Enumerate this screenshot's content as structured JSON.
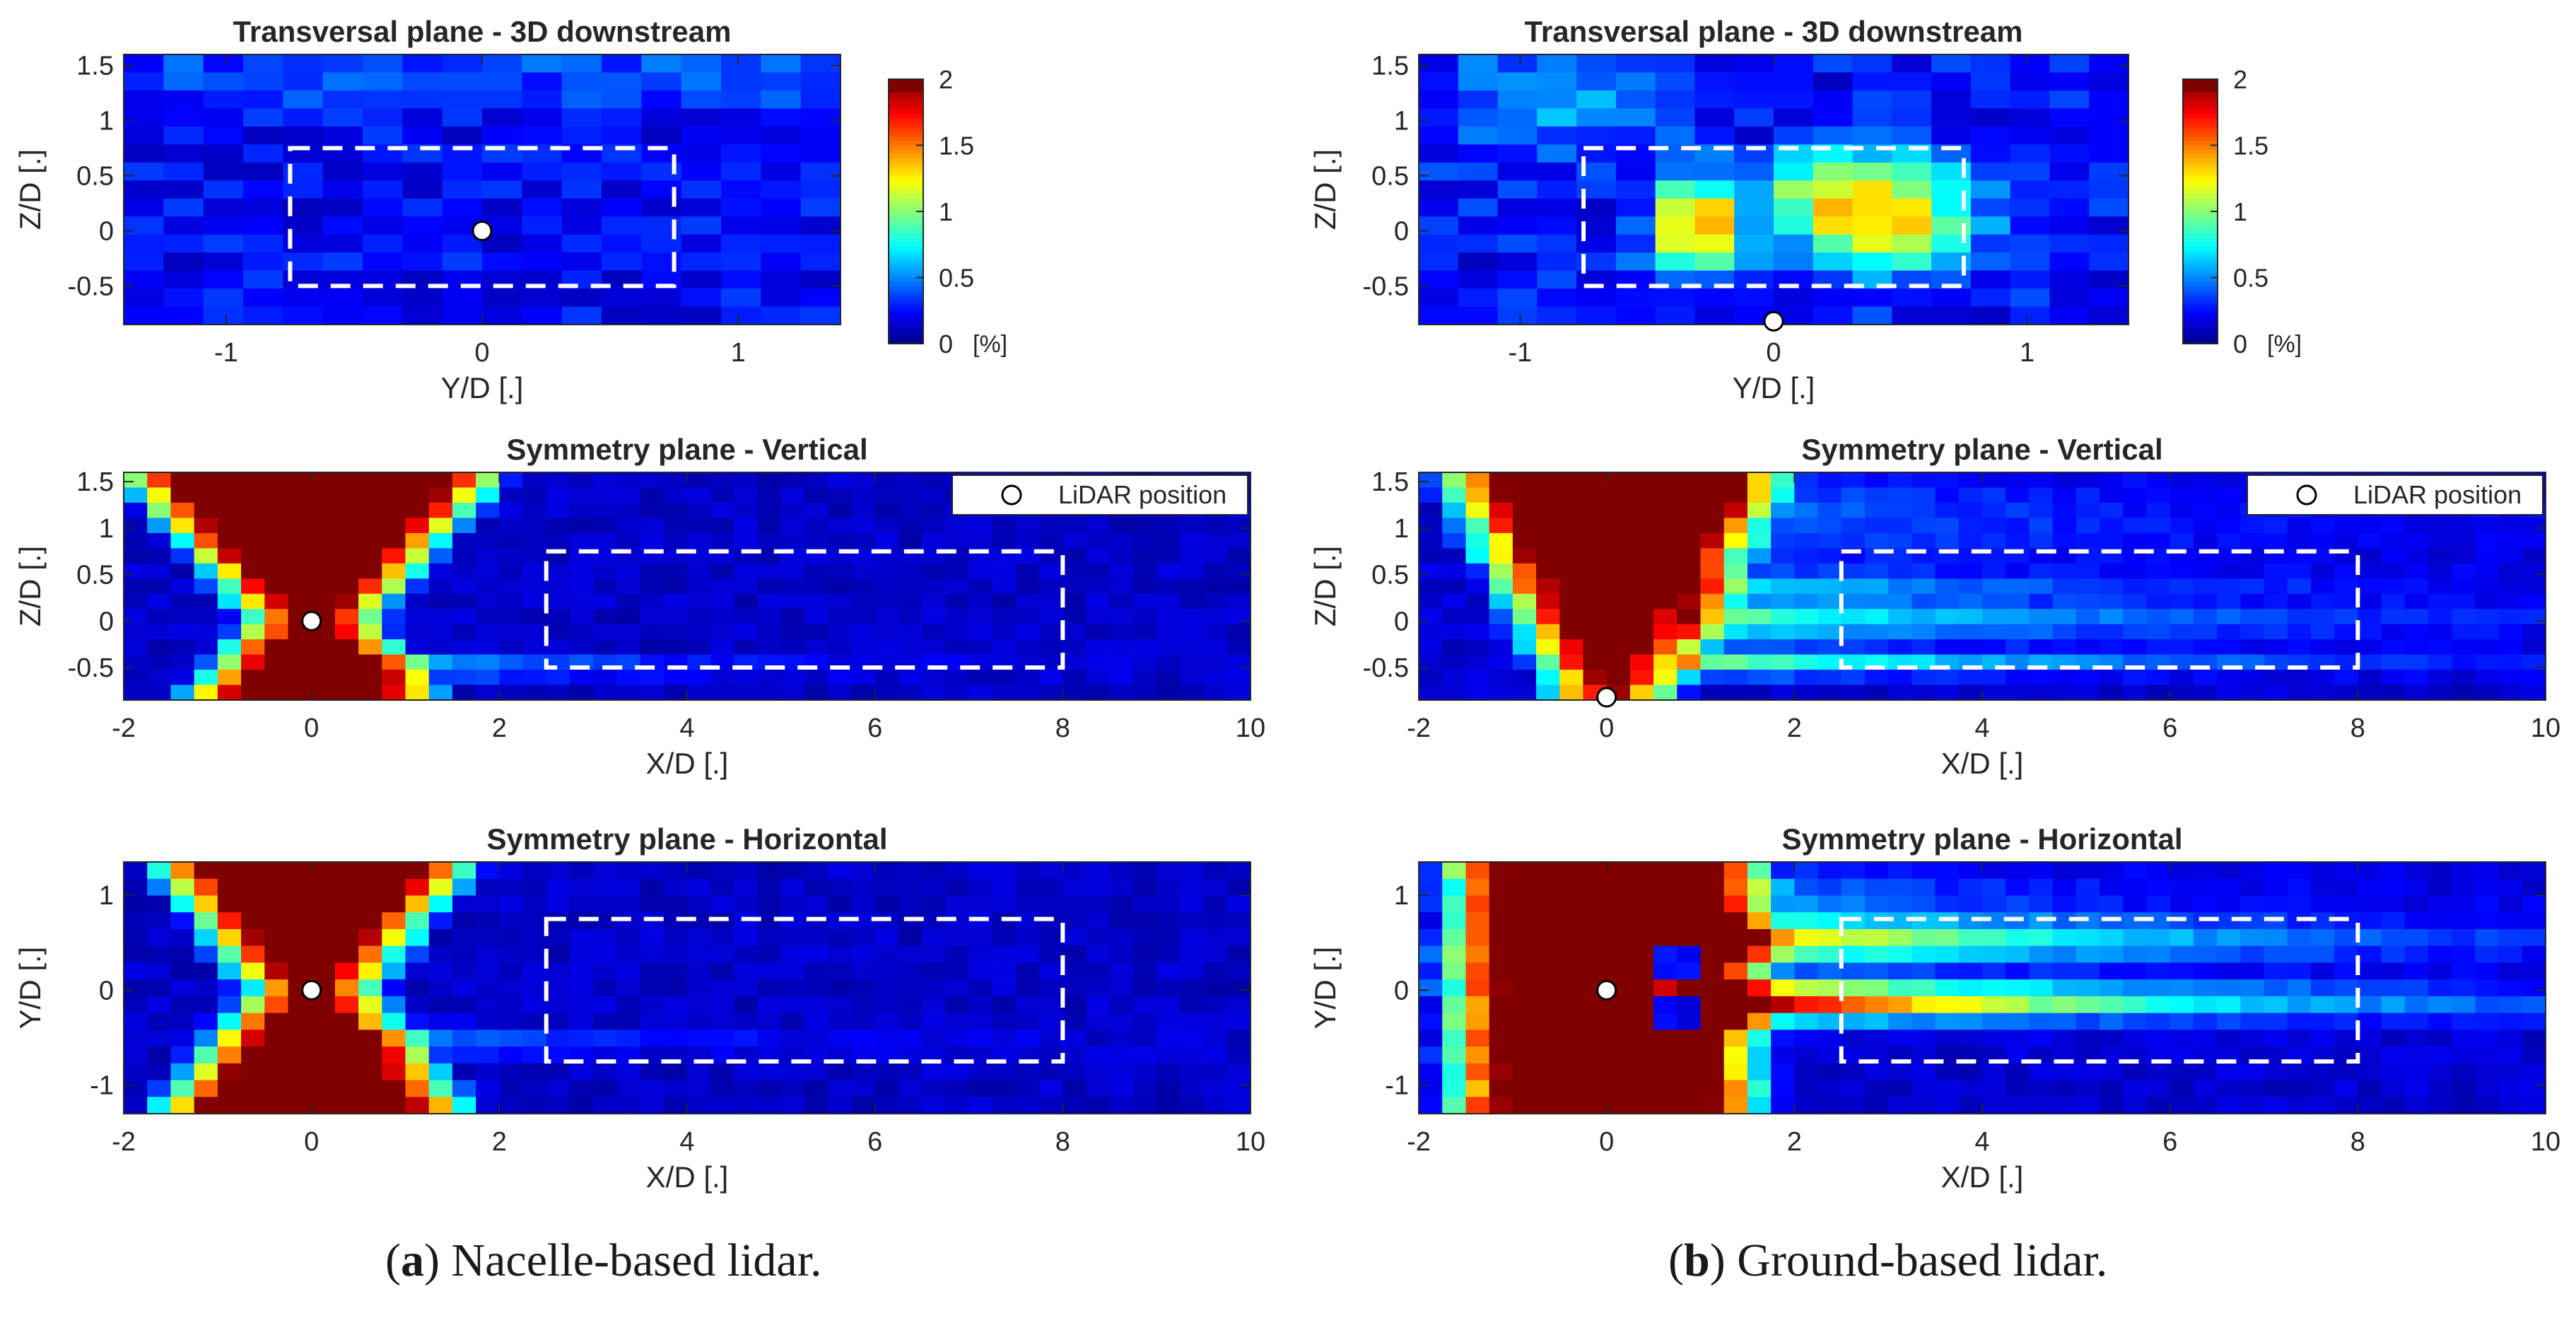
{
  "colors": {
    "colormap": [
      "#00008f",
      "#0000ff",
      "#00ffff",
      "#ffff00",
      "#ff0000",
      "#800000"
    ],
    "frame": "#262626",
    "dashed_box": "#ffffff",
    "lidar_marker": "#ffffff"
  },
  "captions": {
    "a": {
      "label": "a",
      "text": "Nacelle-based lidar."
    },
    "b": {
      "label": "b",
      "text": "Ground-based lidar."
    }
  },
  "legend_label": "LiDAR position",
  "colorbar": {
    "ticks": [
      "0",
      "0.5",
      "1",
      "1.5",
      "2"
    ],
    "unit": "[%]",
    "range": [
      0,
      2
    ]
  },
  "chart_data": [
    {
      "id": "a-transversal",
      "type": "heatmap",
      "column": "a",
      "title": "Transversal plane - 3D downstream",
      "xlabel": "Y/D [.]",
      "ylabel": "Z/D [.]",
      "xlim": [
        -1.4,
        1.4
      ],
      "ylim": [
        -0.85,
        1.6
      ],
      "xticks": [
        -1,
        0,
        1
      ],
      "xticklabels": [
        "-1",
        "0",
        "1"
      ],
      "yticks": [
        -0.5,
        0,
        0.5,
        1,
        1.5
      ],
      "yticklabels": [
        "-0.5",
        "0",
        "0.5",
        "1",
        "1.5"
      ],
      "dashed_box": {
        "x": [
          -0.75,
          0.75
        ],
        "y": [
          -0.5,
          0.75
        ]
      },
      "lidar_position": [
        0,
        0
      ],
      "field": "transversal_nacelle",
      "colorbar": true
    },
    {
      "id": "b-transversal",
      "type": "heatmap",
      "column": "b",
      "title": "Transversal plane - 3D downstream",
      "xlabel": "Y/D [.]",
      "ylabel": "Z/D [.]",
      "xlim": [
        -1.4,
        1.4
      ],
      "ylim": [
        -0.85,
        1.6
      ],
      "xticks": [
        -1,
        0,
        1
      ],
      "xticklabels": [
        "-1",
        "0",
        "1"
      ],
      "yticks": [
        -0.5,
        0,
        0.5,
        1,
        1.5
      ],
      "yticklabels": [
        "-0.5",
        "0",
        "0.5",
        "1",
        "1.5"
      ],
      "dashed_box": {
        "x": [
          -0.75,
          0.75
        ],
        "y": [
          -0.5,
          0.75
        ]
      },
      "lidar_position": [
        0,
        -0.82
      ],
      "field": "transversal_ground",
      "colorbar": true
    },
    {
      "id": "a-vertical",
      "type": "heatmap",
      "column": "a",
      "title": "Symmetry plane - Vertical",
      "xlabel": "X/D [.]",
      "ylabel": "Z/D [.]",
      "xlim": [
        -2,
        10
      ],
      "ylim": [
        -0.85,
        1.6
      ],
      "xticks": [
        -2,
        0,
        2,
        4,
        6,
        8,
        10
      ],
      "xticklabels": [
        "-2",
        "0",
        "2",
        "4",
        "6",
        "8",
        "10"
      ],
      "yticks": [
        -0.5,
        0,
        0.5,
        1,
        1.5
      ],
      "yticklabels": [
        "-0.5",
        "0",
        "0.5",
        "1",
        "1.5"
      ],
      "dashed_box": {
        "x": [
          2.5,
          8
        ],
        "y": [
          -0.5,
          0.75
        ]
      },
      "lidar_position": [
        0,
        0
      ],
      "field": "vertical_nacelle",
      "legend": true
    },
    {
      "id": "b-vertical",
      "type": "heatmap",
      "column": "b",
      "title": "Symmetry plane - Vertical",
      "xlabel": "X/D [.]",
      "ylabel": "Z/D [.]",
      "xlim": [
        -2,
        10
      ],
      "ylim": [
        -0.85,
        1.6
      ],
      "xticks": [
        -2,
        0,
        2,
        4,
        6,
        8,
        10
      ],
      "xticklabels": [
        "-2",
        "0",
        "2",
        "4",
        "6",
        "8",
        "10"
      ],
      "yticks": [
        -0.5,
        0,
        0.5,
        1,
        1.5
      ],
      "yticklabels": [
        "-0.5",
        "0",
        "0.5",
        "1",
        "1.5"
      ],
      "dashed_box": {
        "x": [
          2.5,
          8
        ],
        "y": [
          -0.5,
          0.75
        ]
      },
      "lidar_position": [
        0,
        -0.82
      ],
      "field": "vertical_ground",
      "legend": true
    },
    {
      "id": "a-horizontal",
      "type": "heatmap",
      "column": "a",
      "title": "Symmetry plane - Horizontal",
      "xlabel": "X/D [.]",
      "ylabel": "Y/D [.]",
      "xlim": [
        -2,
        10
      ],
      "ylim": [
        -1.3,
        1.35
      ],
      "xticks": [
        -2,
        0,
        2,
        4,
        6,
        8,
        10
      ],
      "xticklabels": [
        "-2",
        "0",
        "2",
        "4",
        "6",
        "8",
        "10"
      ],
      "yticks": [
        -1,
        0,
        1
      ],
      "yticklabels": [
        "-1",
        "0",
        "1"
      ],
      "dashed_box": {
        "x": [
          2.5,
          8
        ],
        "y": [
          -0.75,
          0.75
        ]
      },
      "lidar_position": [
        0,
        0
      ],
      "field": "horizontal_nacelle"
    },
    {
      "id": "b-horizontal",
      "type": "heatmap",
      "column": "b",
      "title": "Symmetry plane - Horizontal",
      "xlabel": "X/D [.]",
      "ylabel": "Y/D [.]",
      "xlim": [
        -2,
        10
      ],
      "ylim": [
        -1.3,
        1.35
      ],
      "xticks": [
        -2,
        0,
        2,
        4,
        6,
        8,
        10
      ],
      "xticklabels": [
        "-2",
        "0",
        "2",
        "4",
        "6",
        "8",
        "10"
      ],
      "yticks": [
        -1,
        0,
        1
      ],
      "yticklabels": [
        "-1",
        "0",
        "1"
      ],
      "dashed_box": {
        "x": [
          2.5,
          8
        ],
        "y": [
          -0.75,
          0.75
        ]
      },
      "lidar_position": [
        0,
        0
      ],
      "field": "horizontal_ground"
    }
  ]
}
